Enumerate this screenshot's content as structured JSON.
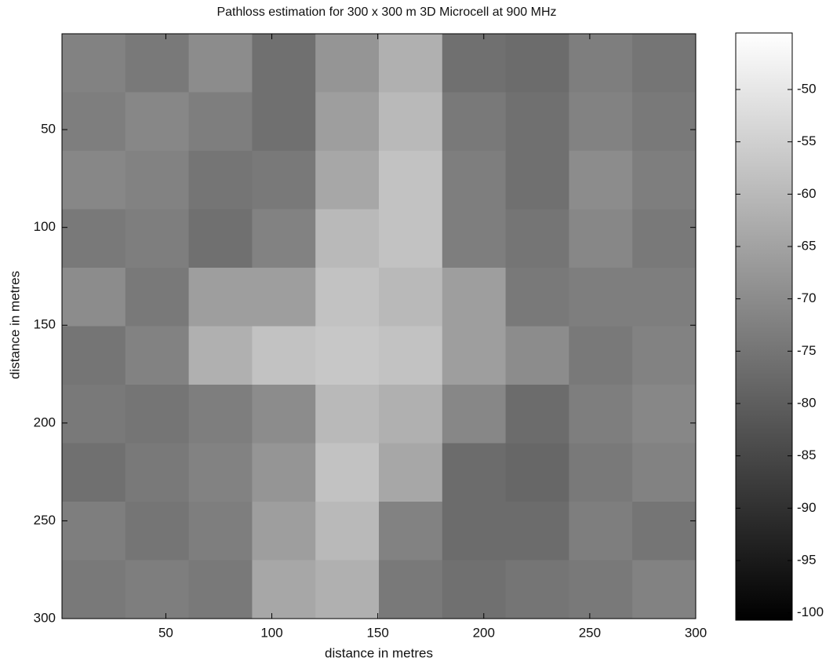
{
  "chart_data": {
    "type": "heatmap",
    "title": "Pathloss estimation for 300 x 300 m 3D Microcell at 900 MHz",
    "xlabel": "distance in metres",
    "ylabel": "distance in metres",
    "xlim": [
      1,
      300
    ],
    "ylim": [
      300,
      1
    ],
    "xticks": [
      50,
      100,
      150,
      200,
      250,
      300
    ],
    "yticks": [
      50,
      100,
      150,
      200,
      250,
      300
    ],
    "colormap": "gray",
    "clim": [
      -100.7,
      -44.6
    ],
    "colorbar_ticks": [
      -50,
      -55,
      -60,
      -65,
      -70,
      -75,
      -80,
      -85,
      -90,
      -95,
      -100
    ],
    "values": [
      [
        -72,
        -74,
        -70,
        -76,
        -68,
        -62,
        -76,
        -77,
        -73,
        -75
      ],
      [
        -73,
        -71,
        -73,
        -76,
        -66,
        -60,
        -74,
        -76,
        -72,
        -74
      ],
      [
        -71,
        -72,
        -75,
        -74,
        -64,
        -58,
        -73,
        -76,
        -70,
        -73
      ],
      [
        -74,
        -73,
        -76,
        -72,
        -60,
        -58,
        -73,
        -75,
        -71,
        -74
      ],
      [
        -70,
        -74,
        -66,
        -66,
        -58,
        -60,
        -66,
        -74,
        -73,
        -73
      ],
      [
        -75,
        -72,
        -62,
        -58,
        -57,
        -58,
        -66,
        -70,
        -74,
        -72
      ],
      [
        -74,
        -75,
        -73,
        -70,
        -60,
        -62,
        -71,
        -77,
        -73,
        -71
      ],
      [
        -76,
        -74,
        -72,
        -68,
        -58,
        -64,
        -77,
        -78,
        -74,
        -72
      ],
      [
        -73,
        -75,
        -73,
        -66,
        -60,
        -72,
        -77,
        -77,
        -73,
        -75
      ],
      [
        -74,
        -73,
        -74,
        -64,
        -62,
        -74,
        -76,
        -75,
        -74,
        -72
      ]
    ]
  }
}
